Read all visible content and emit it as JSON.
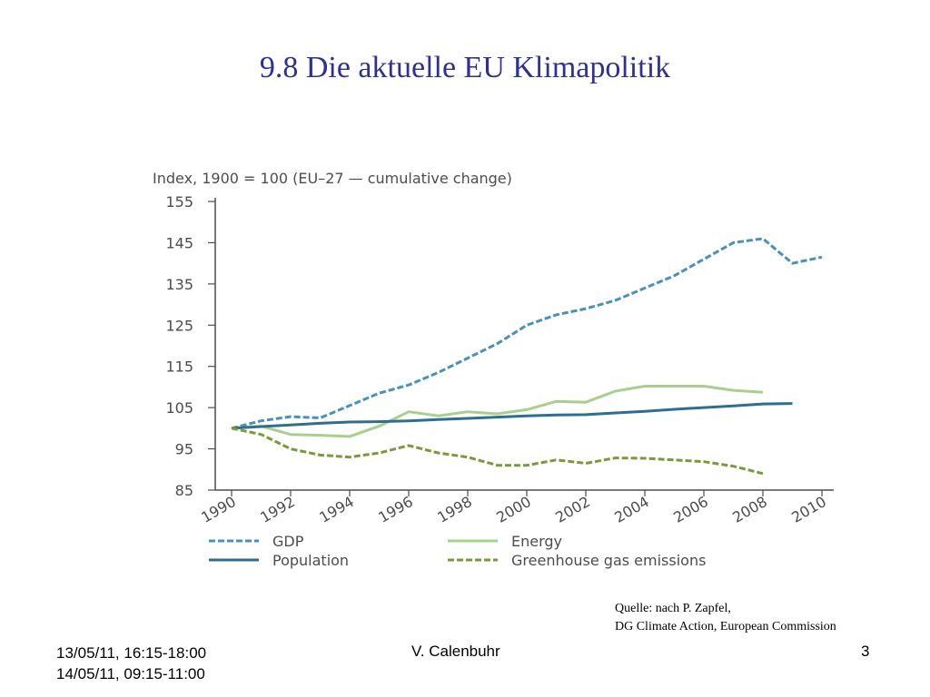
{
  "slide": {
    "title": "9.8 Die aktuelle EU Klimapolitik",
    "source_line1": "Quelle: nach P. Zapfel,",
    "source_line2": "DG Climate Action, European Commission",
    "footer_date1": "13/05/11, 16:15-18:00",
    "footer_date2": "14/05/11, 09:15-11:00",
    "footer_author": "V. Calenbuhr",
    "page_number": "3"
  },
  "chart_data": {
    "type": "line",
    "title": "Index, 1900 = 100 (EU–27 — cumulative change)",
    "xlabel": "",
    "ylabel": "",
    "ylim": [
      85,
      155
    ],
    "yticks": [
      85,
      95,
      105,
      115,
      125,
      135,
      145,
      155
    ],
    "xlim": [
      1990,
      2010
    ],
    "xticks": [
      "1990",
      "1992",
      "1994",
      "1996",
      "1998",
      "2000",
      "2002",
      "2004",
      "2006",
      "2008",
      "2010"
    ],
    "grid": false,
    "legend_position": "bottom",
    "series": [
      {
        "name": "GDP",
        "color": "#4a90b8",
        "dashed": true,
        "x": [
          1990,
          1991,
          1992,
          1993,
          1994,
          1995,
          1996,
          1997,
          1998,
          1999,
          2000,
          2001,
          2002,
          2003,
          2004,
          2005,
          2006,
          2007,
          2008,
          2009,
          2010
        ],
        "values": [
          100,
          101.8,
          102.8,
          102.5,
          105.5,
          108.5,
          110.5,
          113.5,
          117,
          120.5,
          125,
          127.5,
          129,
          131,
          134,
          137,
          141,
          145,
          146,
          140,
          141.5
        ]
      },
      {
        "name": "Energy",
        "color": "#a8d08d",
        "dashed": false,
        "x": [
          1990,
          1991,
          1992,
          1993,
          1994,
          1995,
          1996,
          1997,
          1998,
          1999,
          2000,
          2001,
          2002,
          2003,
          2004,
          2005,
          2006,
          2007,
          2008
        ],
        "values": [
          100,
          100.5,
          98.5,
          98.3,
          98,
          100.5,
          104,
          103,
          104,
          103.5,
          104.5,
          106.5,
          106.3,
          109,
          110.2,
          110.2,
          110.2,
          109.2,
          108.7
        ]
      },
      {
        "name": "Population",
        "color": "#2e6e8e",
        "dashed": false,
        "x": [
          1990,
          1991,
          1992,
          1993,
          1994,
          1995,
          1996,
          1997,
          1998,
          1999,
          2000,
          2001,
          2002,
          2003,
          2004,
          2005,
          2006,
          2007,
          2008,
          2009
        ],
        "values": [
          100,
          100.4,
          100.8,
          101.2,
          101.5,
          101.6,
          101.8,
          102.1,
          102.4,
          102.7,
          103,
          103.2,
          103.3,
          103.7,
          104.1,
          104.6,
          105,
          105.4,
          105.9,
          106
        ]
      },
      {
        "name": "Greenhouse gas emissions",
        "color": "#7a9a3a",
        "dashed": true,
        "x": [
          1990,
          1991,
          1992,
          1993,
          1994,
          1995,
          1996,
          1997,
          1998,
          1999,
          2000,
          2001,
          2002,
          2003,
          2004,
          2005,
          2006,
          2007,
          2008
        ],
        "values": [
          100,
          98.5,
          95,
          93.5,
          93,
          94,
          95.8,
          94,
          93,
          91,
          91,
          92.3,
          91.5,
          92.8,
          92.7,
          92.3,
          91.9,
          90.8,
          89
        ]
      }
    ]
  }
}
